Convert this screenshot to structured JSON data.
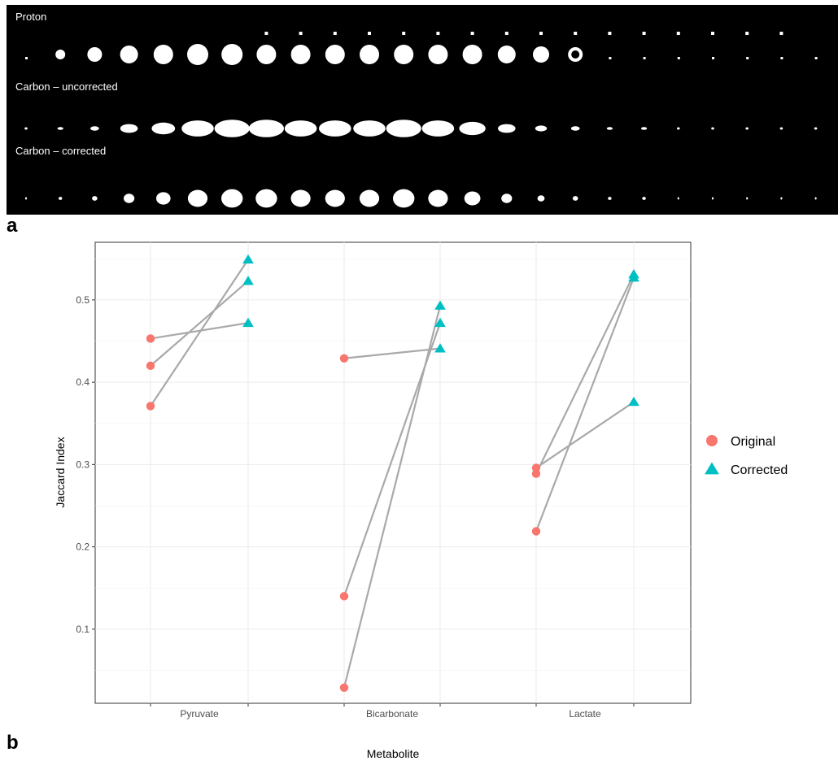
{
  "panel_a": {
    "letter": "a",
    "strips": [
      {
        "label": "Proton"
      },
      {
        "label": "Carbon – uncorrected"
      },
      {
        "label": "Carbon – corrected"
      }
    ]
  },
  "panel_b": {
    "letter": "b"
  },
  "chart_data": {
    "type": "scatter",
    "title": "",
    "xlabel": "Metabolite",
    "ylabel": "Jaccard Index",
    "categories": [
      "Pyruvate",
      "Bicarbonate",
      "Lactate"
    ],
    "ylim": [
      0.01,
      0.57
    ],
    "yticks": [
      0.1,
      0.2,
      0.3,
      0.4,
      0.5
    ],
    "ytick_labels": [
      "0.1",
      "0.2",
      "0.3",
      "0.4",
      "0.5"
    ],
    "grid": true,
    "legend_position": "right",
    "series": [
      {
        "name": "Original",
        "color": "#F8766D",
        "marker": "circle"
      },
      {
        "name": "Corrected",
        "color": "#00BFC4",
        "marker": "triangle"
      }
    ],
    "paired_points": [
      {
        "category": "Pyruvate",
        "original": 0.453,
        "corrected": 0.472
      },
      {
        "category": "Pyruvate",
        "original": 0.42,
        "corrected": 0.523
      },
      {
        "category": "Pyruvate",
        "original": 0.371,
        "corrected": 0.549
      },
      {
        "category": "Bicarbonate",
        "original": 0.429,
        "corrected": 0.441
      },
      {
        "category": "Bicarbonate",
        "original": 0.14,
        "corrected": 0.472
      },
      {
        "category": "Bicarbonate",
        "original": 0.029,
        "corrected": 0.493
      },
      {
        "category": "Lactate",
        "original": 0.296,
        "corrected": 0.376
      },
      {
        "category": "Lactate",
        "original": 0.289,
        "corrected": 0.531
      },
      {
        "category": "Lactate",
        "original": 0.219,
        "corrected": 0.527
      }
    ],
    "line_color": "#A9A9A9"
  }
}
